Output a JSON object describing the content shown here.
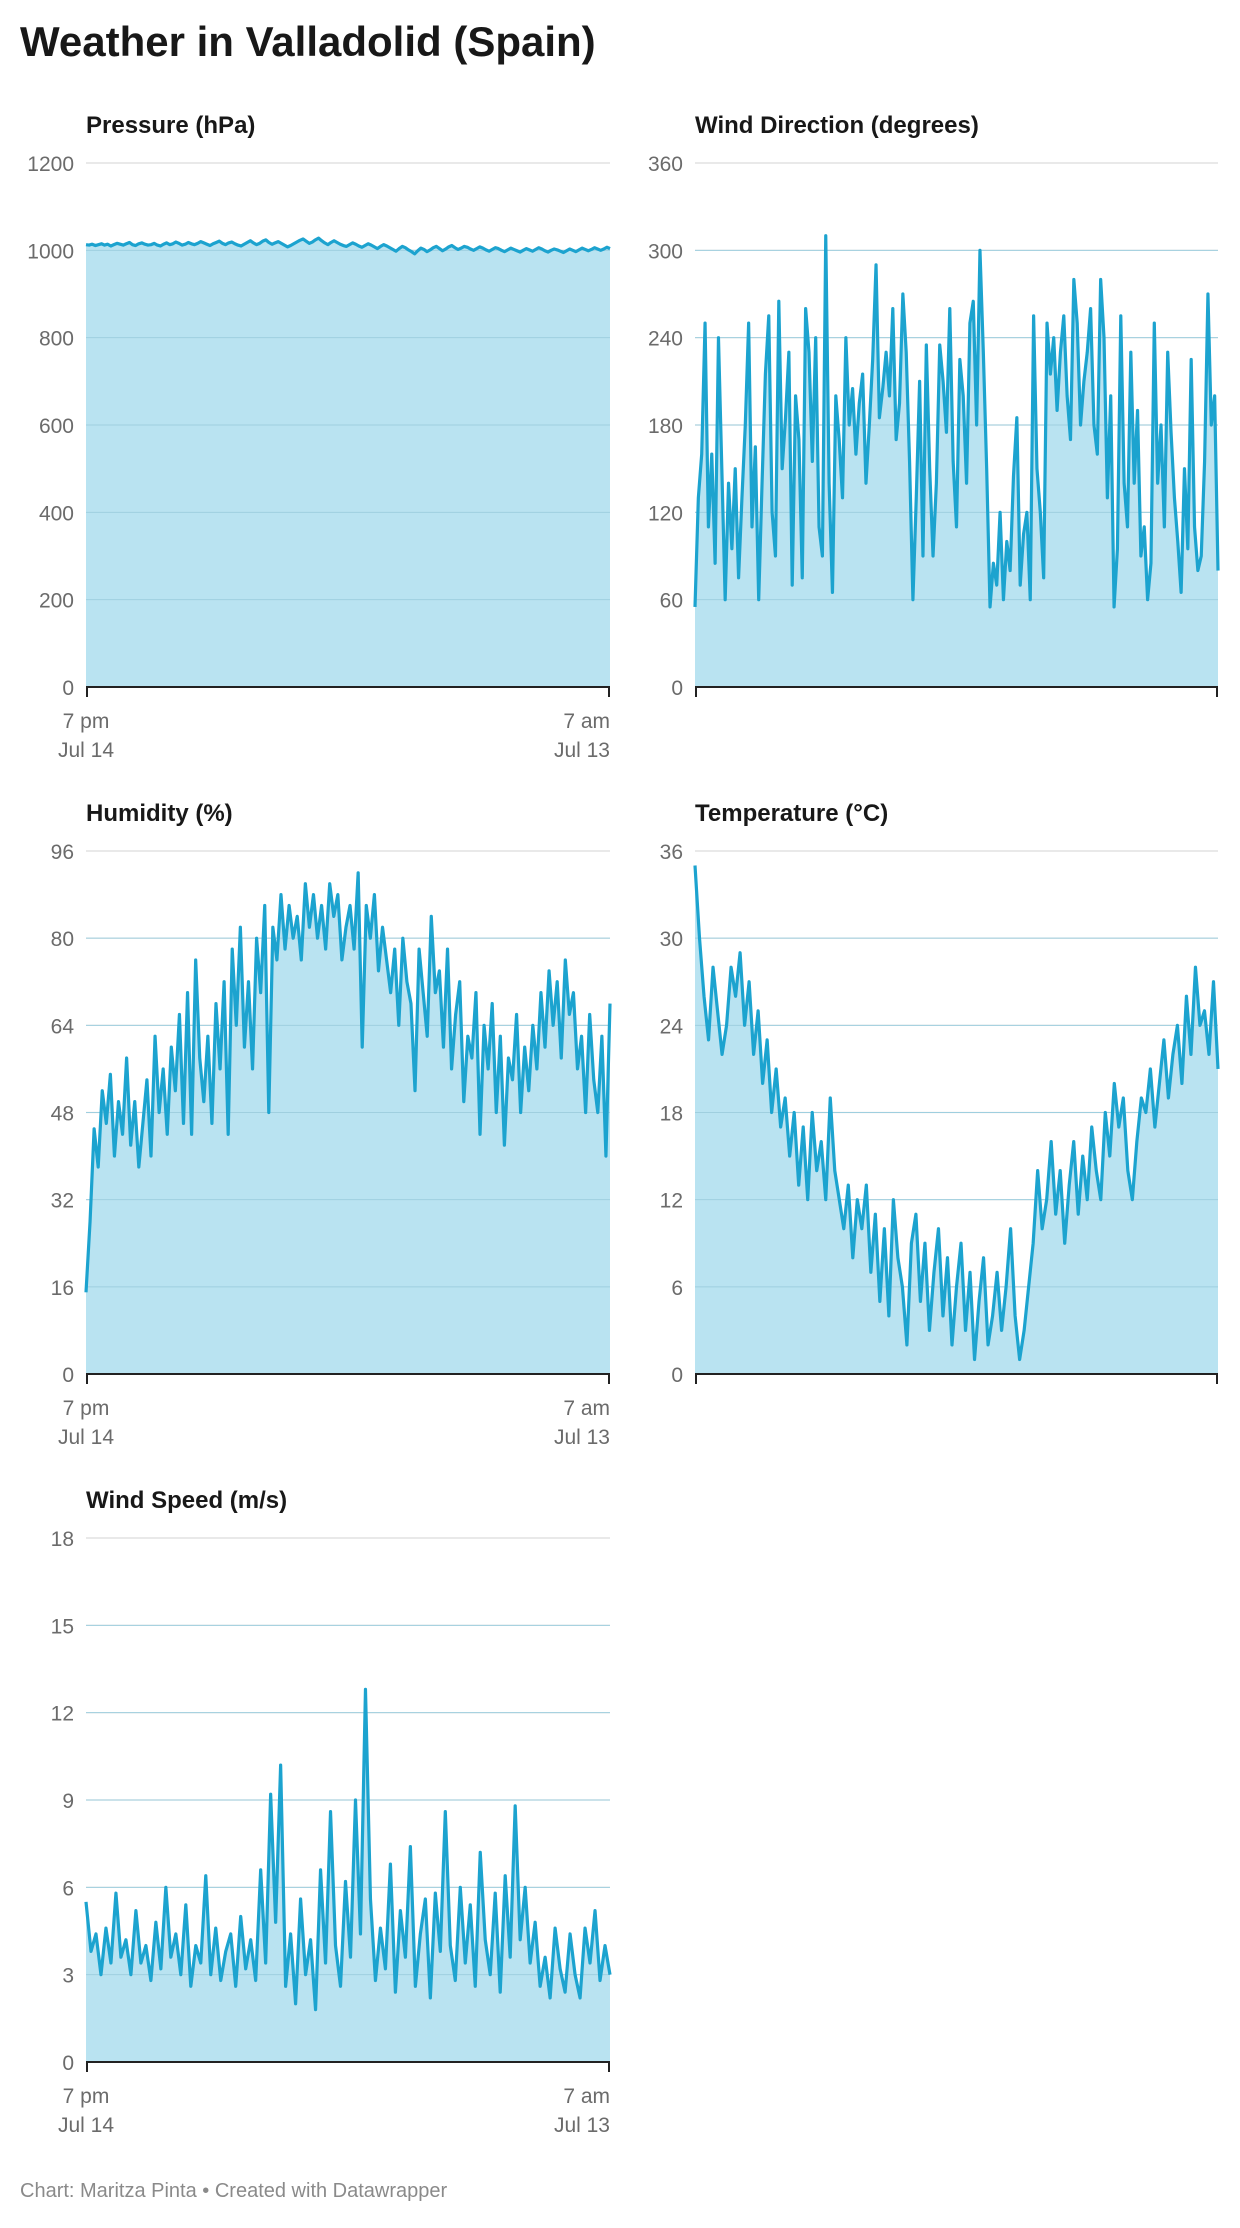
{
  "title": "Weather in Valladolid (Spain)",
  "footer": "Chart: Maritza Pinta • Created with Datawrapper",
  "colors": {
    "line": "#1ca3cf",
    "area": "#b9e3f1",
    "grid": "#dcdcdc",
    "axis": "#222222",
    "tick_text": "#6b6b6b"
  },
  "chart_data": [
    {
      "type": "area",
      "title": "Pressure (hPa)",
      "ylim": [
        0,
        1200
      ],
      "yticks": [
        0,
        200,
        400,
        600,
        800,
        1000,
        1200
      ],
      "xtick_labels": [
        [
          "7 pm",
          "Jul 14"
        ],
        [
          "7 am",
          "Jul 13"
        ]
      ],
      "values": [
        1013,
        1012,
        1014,
        1011,
        1013,
        1015,
        1012,
        1014,
        1010,
        1013,
        1016,
        1014,
        1012,
        1015,
        1018,
        1013,
        1011,
        1015,
        1017,
        1014,
        1012,
        1013,
        1016,
        1012,
        1010,
        1014,
        1017,
        1013,
        1015,
        1019,
        1016,
        1012,
        1014,
        1018,
        1015,
        1013,
        1016,
        1020,
        1017,
        1014,
        1011,
        1015,
        1018,
        1021,
        1016,
        1013,
        1017,
        1019,
        1015,
        1012,
        1010,
        1014,
        1018,
        1022,
        1017,
        1013,
        1016,
        1021,
        1024,
        1018,
        1014,
        1017,
        1020,
        1016,
        1012,
        1008,
        1011,
        1015,
        1019,
        1023,
        1026,
        1021,
        1016,
        1019,
        1024,
        1028,
        1022,
        1017,
        1013,
        1018,
        1022,
        1018,
        1014,
        1011,
        1009,
        1013,
        1017,
        1014,
        1010,
        1007,
        1011,
        1015,
        1012,
        1008,
        1004,
        1009,
        1013,
        1010,
        1006,
        1002,
        998,
        1004,
        1009,
        1006,
        1001,
        997,
        992,
        999,
        1005,
        1002,
        997,
        1001,
        1006,
        1009,
        1004,
        999,
        1003,
        1008,
        1011,
        1006,
        1002,
        1005,
        1009,
        1007,
        1003,
        1000,
        1004,
        1008,
        1005,
        1001,
        998,
        1002,
        1006,
        1004,
        1000,
        997,
        1001,
        1005,
        1002,
        999,
        996,
        1000,
        1004,
        1001,
        998,
        1002,
        1006,
        1003,
        999,
        996,
        1000,
        1003,
        1001,
        998,
        995,
        999,
        1003,
        1000,
        997,
        1001,
        1005,
        1002,
        999,
        1002,
        1006,
        1003,
        1000,
        1003,
        1007,
        1004
      ]
    },
    {
      "type": "area",
      "title": "Wind Direction (degrees)",
      "ylim": [
        0,
        360
      ],
      "yticks": [
        0,
        60,
        120,
        180,
        240,
        300,
        360
      ],
      "xtick_labels": [],
      "values": [
        55,
        130,
        160,
        250,
        110,
        160,
        85,
        240,
        150,
        60,
        140,
        95,
        150,
        75,
        130,
        180,
        250,
        110,
        165,
        60,
        140,
        215,
        255,
        120,
        90,
        265,
        150,
        185,
        230,
        70,
        200,
        170,
        75,
        260,
        230,
        155,
        240,
        110,
        90,
        310,
        140,
        65,
        200,
        170,
        130,
        240,
        180,
        205,
        160,
        195,
        215,
        140,
        180,
        225,
        290,
        185,
        205,
        230,
        200,
        260,
        170,
        195,
        270,
        230,
        155,
        60,
        130,
        210,
        90,
        235,
        150,
        90,
        140,
        235,
        210,
        175,
        260,
        155,
        110,
        225,
        200,
        140,
        250,
        265,
        180,
        300,
        230,
        150,
        55,
        85,
        70,
        120,
        60,
        100,
        80,
        145,
        185,
        70,
        105,
        120,
        60,
        255,
        150,
        120,
        75,
        250,
        215,
        240,
        190,
        230,
        255,
        200,
        170,
        280,
        250,
        180,
        210,
        230,
        260,
        180,
        160,
        280,
        240,
        130,
        200,
        55,
        95,
        255,
        140,
        110,
        230,
        140,
        190,
        90,
        110,
        60,
        85,
        250,
        140,
        180,
        110,
        230,
        175,
        130,
        100,
        65,
        150,
        95,
        225,
        110,
        80,
        90,
        155,
        270,
        180,
        200,
        80
      ]
    },
    {
      "type": "area",
      "title": "Humidity (%)",
      "ylim": [
        0,
        96
      ],
      "yticks": [
        0,
        16,
        32,
        48,
        64,
        80,
        96
      ],
      "xtick_labels": [
        [
          "7 pm",
          "Jul 14"
        ],
        [
          "7 am",
          "Jul 13"
        ]
      ],
      "values": [
        15,
        28,
        45,
        38,
        52,
        46,
        55,
        40,
        50,
        44,
        58,
        42,
        50,
        38,
        46,
        54,
        40,
        62,
        48,
        56,
        44,
        60,
        52,
        66,
        46,
        70,
        44,
        76,
        58,
        50,
        62,
        46,
        68,
        56,
        72,
        44,
        78,
        64,
        82,
        60,
        72,
        56,
        80,
        70,
        86,
        48,
        82,
        76,
        88,
        78,
        86,
        80,
        84,
        76,
        90,
        82,
        88,
        80,
        86,
        78,
        90,
        84,
        88,
        76,
        82,
        86,
        78,
        92,
        60,
        86,
        80,
        88,
        74,
        82,
        76,
        70,
        78,
        64,
        80,
        72,
        68,
        52,
        78,
        70,
        62,
        84,
        70,
        74,
        60,
        78,
        56,
        66,
        72,
        50,
        62,
        58,
        70,
        44,
        64,
        56,
        68,
        48,
        62,
        42,
        58,
        54,
        66,
        48,
        60,
        52,
        64,
        56,
        70,
        60,
        74,
        64,
        72,
        58,
        76,
        66,
        70,
        56,
        62,
        48,
        66,
        54,
        48,
        62,
        40,
        68
      ]
    },
    {
      "type": "area",
      "title": "Temperature (°C)",
      "ylim": [
        0,
        36
      ],
      "yticks": [
        0,
        6,
        12,
        18,
        24,
        30,
        36
      ],
      "xtick_labels": [],
      "values": [
        35,
        30,
        26,
        23,
        28,
        25,
        22,
        24,
        28,
        26,
        29,
        24,
        27,
        22,
        25,
        20,
        23,
        18,
        21,
        17,
        19,
        15,
        18,
        13,
        17,
        12,
        18,
        14,
        16,
        12,
        19,
        14,
        12,
        10,
        13,
        8,
        12,
        10,
        13,
        7,
        11,
        5,
        10,
        4,
        12,
        8,
        6,
        2,
        9,
        11,
        5,
        9,
        3,
        7,
        10,
        4,
        8,
        2,
        6,
        9,
        3,
        7,
        1,
        5,
        8,
        2,
        4,
        7,
        3,
        6,
        10,
        4,
        1,
        3,
        6,
        9,
        14,
        10,
        12,
        16,
        11,
        14,
        9,
        13,
        16,
        11,
        15,
        12,
        17,
        14,
        12,
        18,
        15,
        20,
        17,
        19,
        14,
        12,
        16,
        19,
        18,
        21,
        17,
        20,
        23,
        19,
        22,
        24,
        20,
        26,
        22,
        28,
        24,
        25,
        22,
        27,
        21
      ]
    },
    {
      "type": "area",
      "title": "Wind Speed (m/s)",
      "ylim": [
        0,
        18
      ],
      "yticks": [
        0,
        3,
        6,
        9,
        12,
        15,
        18
      ],
      "xtick_labels": [
        [
          "7 pm",
          "Jul 14"
        ],
        [
          "7 am",
          "Jul 13"
        ]
      ],
      "values": [
        5.5,
        3.8,
        4.4,
        3.0,
        4.6,
        3.4,
        5.8,
        3.6,
        4.2,
        3.0,
        5.2,
        3.4,
        4.0,
        2.8,
        4.8,
        3.2,
        6.0,
        3.6,
        4.4,
        3.0,
        5.4,
        2.6,
        4.0,
        3.4,
        6.4,
        3.0,
        4.6,
        2.8,
        3.8,
        4.4,
        2.6,
        5.0,
        3.2,
        4.2,
        2.8,
        6.6,
        3.4,
        9.2,
        4.8,
        10.2,
        2.6,
        4.4,
        2.0,
        5.6,
        3.0,
        4.2,
        1.8,
        6.6,
        3.4,
        8.6,
        4.0,
        2.6,
        6.2,
        3.6,
        9.0,
        4.4,
        12.8,
        5.6,
        2.8,
        4.6,
        3.2,
        6.8,
        2.4,
        5.2,
        3.6,
        7.4,
        2.6,
        4.4,
        5.6,
        2.2,
        5.8,
        3.8,
        8.6,
        4.0,
        2.8,
        6.0,
        3.4,
        5.4,
        2.6,
        7.2,
        4.2,
        3.0,
        5.8,
        2.4,
        6.4,
        3.6,
        8.8,
        4.2,
        6.0,
        3.4,
        4.8,
        2.6,
        3.6,
        2.2,
        4.6,
        3.2,
        2.4,
        4.4,
        3.0,
        2.2,
        4.6,
        3.4,
        5.2,
        2.8,
        4.0,
        3.0
      ]
    }
  ]
}
